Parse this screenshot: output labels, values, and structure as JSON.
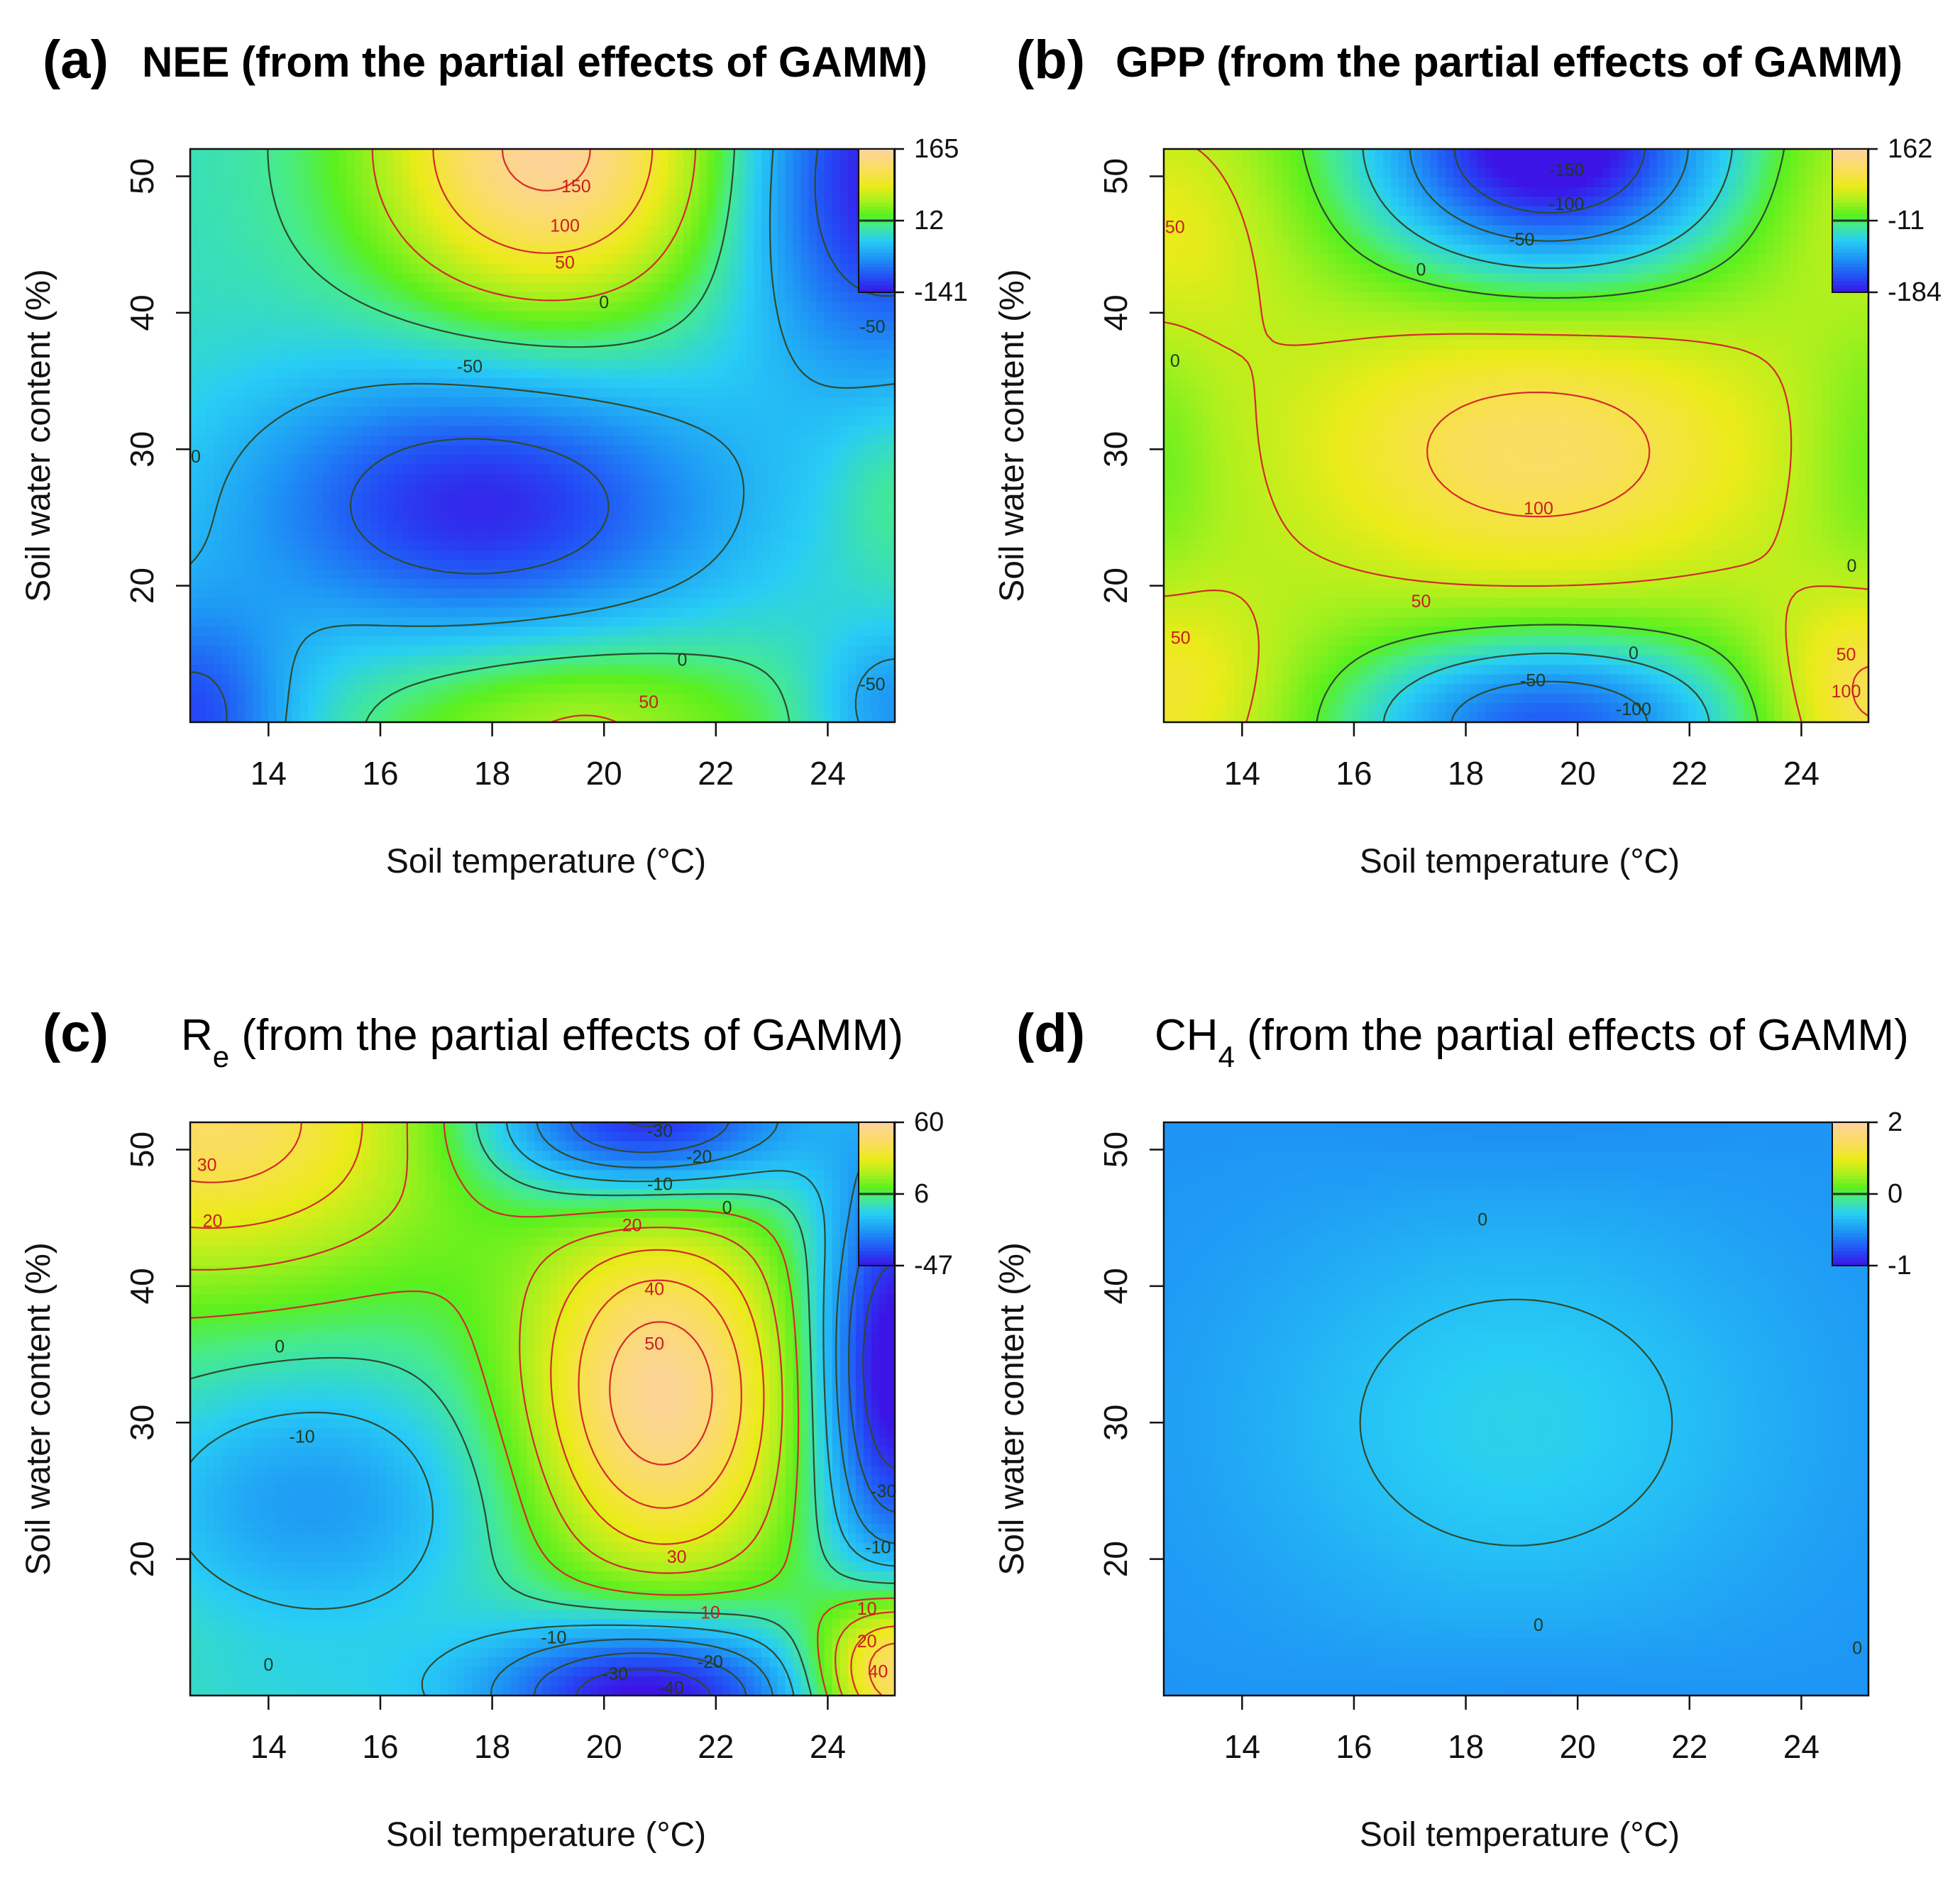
{
  "figure": {
    "common_xlabel": "Soil temperature (°C)",
    "common_ylabel": "Soil water content (%)"
  },
  "chart_data": [
    {
      "type": "heatmap",
      "letter": "(a)",
      "title": "NEE (from the partial effects of GAMM)",
      "title_bold": true,
      "title_main": "NEE",
      "title_sub": "",
      "title_rest": " (from the partial effects of GAMM)",
      "xlabel": "Soil temperature (°C)",
      "ylabel": "Soil water content (%)",
      "xlim": [
        12.6,
        25.2
      ],
      "ylim": [
        10,
        52
      ],
      "xticks": [
        14,
        16,
        18,
        20,
        22,
        24
      ],
      "yticks": [
        20,
        30,
        40,
        50
      ],
      "legend": {
        "max": 165,
        "mid": 12,
        "min": -141
      },
      "field": {
        "base": -13,
        "bumps": [
          {
            "x": 19.0,
            "y": 52,
            "sx": 2.2,
            "sy": 8.5,
            "a": 175
          },
          {
            "x": 17.8,
            "y": 26,
            "sx": 3.0,
            "sy": 7.0,
            "a": -118
          },
          {
            "x": 25.0,
            "y": 50,
            "sx": 1.8,
            "sy": 10,
            "a": -130
          },
          {
            "x": 12.6,
            "y": 10,
            "sx": 1.3,
            "sy": 6.0,
            "a": -100
          },
          {
            "x": 19.5,
            "y": 10,
            "sx": 2.6,
            "sy": 4.5,
            "a": 72
          },
          {
            "x": 25.2,
            "y": 11,
            "sx": 1.0,
            "sy": 4.0,
            "a": -60
          },
          {
            "x": 25.2,
            "y": 27,
            "sx": 0.8,
            "sy": 4.5,
            "a": 26
          }
        ]
      },
      "contours": [
        -100,
        -50,
        0,
        50,
        100,
        150
      ],
      "contour_labels": [
        {
          "text": "150",
          "x": 19.5,
          "y": 49.3
        },
        {
          "text": "100",
          "x": 19.3,
          "y": 46.4
        },
        {
          "text": "50",
          "x": 19.3,
          "y": 43.7
        },
        {
          "text": "0",
          "x": 20.0,
          "y": 40.8
        },
        {
          "text": "-50",
          "x": 17.6,
          "y": 36.1
        },
        {
          "text": "-50",
          "x": 24.8,
          "y": 39.0
        },
        {
          "text": "0",
          "x": 12.7,
          "y": 29.5
        },
        {
          "text": "0",
          "x": 21.4,
          "y": 14.6
        },
        {
          "text": "50",
          "x": 20.8,
          "y": 11.5
        },
        {
          "text": "-50",
          "x": 24.8,
          "y": 12.8
        }
      ]
    },
    {
      "type": "heatmap",
      "letter": "(b)",
      "title": "GPP (from the partial effects of GAMM)",
      "title_bold": true,
      "title_main": "GPP",
      "title_sub": "",
      "title_rest": " (from the partial effects of GAMM)",
      "xlabel": "Soil temperature (°C)",
      "ylabel": "Soil water content (%)",
      "xlim": [
        12.6,
        25.2
      ],
      "ylim": [
        10,
        52
      ],
      "xticks": [
        14,
        16,
        18,
        20,
        22,
        24
      ],
      "yticks": [
        20,
        30,
        40,
        50
      ],
      "legend": {
        "max": 162,
        "mid": -11,
        "min": -184
      },
      "field": {
        "base": 18,
        "bumps": [
          {
            "x": 19.5,
            "y": 52,
            "sx": 2.2,
            "sy": 6.5,
            "a": -230
          },
          {
            "x": 19.5,
            "y": 10,
            "sx": 2.4,
            "sy": 4.5,
            "a": -160
          },
          {
            "x": 19.3,
            "y": 30,
            "sx": 3.2,
            "sy": 8.0,
            "a": 100
          },
          {
            "x": 12.6,
            "y": 46,
            "sx": 1.6,
            "sy": 7.0,
            "a": 55
          },
          {
            "x": 12.6,
            "y": 12,
            "sx": 1.6,
            "sy": 6.0,
            "a": 70
          },
          {
            "x": 25.2,
            "y": 12,
            "sx": 1.3,
            "sy": 5.5,
            "a": 95
          },
          {
            "x": 25.2,
            "y": 48,
            "sx": 1.4,
            "sy": 6.5,
            "a": 40
          },
          {
            "x": 12.6,
            "y": 30,
            "sx": 0.6,
            "sy": 7.0,
            "a": -20
          },
          {
            "x": 25.2,
            "y": 29,
            "sx": 0.8,
            "sy": 7.0,
            "a": -25
          }
        ]
      },
      "contours": [
        -150,
        -100,
        -50,
        0,
        50,
        100
      ],
      "contour_labels": [
        {
          "text": "-150",
          "x": 19.8,
          "y": 50.5
        },
        {
          "text": "-100",
          "x": 19.8,
          "y": 48.0
        },
        {
          "text": "-50",
          "x": 19.0,
          "y": 45.4
        },
        {
          "text": "0",
          "x": 17.2,
          "y": 43.2
        },
        {
          "text": "50",
          "x": 12.8,
          "y": 46.3
        },
        {
          "text": "0",
          "x": 12.8,
          "y": 36.5
        },
        {
          "text": "100",
          "x": 19.3,
          "y": 25.7
        },
        {
          "text": "50",
          "x": 17.2,
          "y": 18.9
        },
        {
          "text": "50",
          "x": 12.9,
          "y": 16.2
        },
        {
          "text": "0",
          "x": 21.0,
          "y": 15.1
        },
        {
          "text": "-50",
          "x": 19.2,
          "y": 13.1
        },
        {
          "text": "-100",
          "x": 21.0,
          "y": 11.0
        },
        {
          "text": "0",
          "x": 24.9,
          "y": 21.5
        },
        {
          "text": "50",
          "x": 24.8,
          "y": 15.0
        },
        {
          "text": "100",
          "x": 24.8,
          "y": 12.3
        }
      ]
    },
    {
      "type": "heatmap",
      "letter": "(c)",
      "title": "Re (from the partial effects of GAMM)",
      "title_bold": false,
      "title_main": "R",
      "title_sub": "e",
      "title_rest": " (from the partial effects of GAMM)",
      "xlabel": "Soil temperature (°C)",
      "ylabel": "Soil water content (%)",
      "xlim": [
        12.6,
        25.2
      ],
      "ylim": [
        10,
        52
      ],
      "xticks": [
        14,
        16,
        18,
        20,
        22,
        24
      ],
      "yticks": [
        20,
        30,
        40,
        50
      ],
      "legend": {
        "max": 60,
        "mid": 6,
        "min": -47
      },
      "field": {
        "base": 4,
        "bumps": [
          {
            "x": 21.0,
            "y": 32,
            "sx": 1.7,
            "sy": 9.5,
            "a": 54
          },
          {
            "x": 13.0,
            "y": 52,
            "sx": 3.0,
            "sy": 8.0,
            "a": 42
          },
          {
            "x": 20.7,
            "y": 52,
            "sx": 2.0,
            "sy": 4.0,
            "a": -52
          },
          {
            "x": 20.8,
            "y": 10,
            "sx": 2.0,
            "sy": 4.0,
            "a": -55
          },
          {
            "x": 14.8,
            "y": 24,
            "sx": 2.4,
            "sy": 7.0,
            "a": -24
          },
          {
            "x": 25.2,
            "y": 34,
            "sx": 1.0,
            "sy": 11.0,
            "a": -58
          },
          {
            "x": 25.2,
            "y": 12,
            "sx": 1.0,
            "sy": 4.0,
            "a": 55
          },
          {
            "x": 14.5,
            "y": 10,
            "sx": 3.0,
            "sy": 3.0,
            "a": -6
          }
        ]
      },
      "contours": [
        -40,
        -30,
        -20,
        -10,
        0,
        10,
        20,
        30,
        40,
        50
      ],
      "contour_labels": [
        {
          "text": "30",
          "x": 12.9,
          "y": 48.9
        },
        {
          "text": "20",
          "x": 13.0,
          "y": 44.8
        },
        {
          "text": "-30",
          "x": 21.0,
          "y": 51.4
        },
        {
          "text": "-20",
          "x": 21.7,
          "y": 49.5
        },
        {
          "text": "-10",
          "x": 21.0,
          "y": 47.5
        },
        {
          "text": "0",
          "x": 22.2,
          "y": 45.8
        },
        {
          "text": "20",
          "x": 20.5,
          "y": 44.5
        },
        {
          "text": "40",
          "x": 20.9,
          "y": 39.8
        },
        {
          "text": "50",
          "x": 20.9,
          "y": 35.8
        },
        {
          "text": "0",
          "x": 14.2,
          "y": 35.6
        },
        {
          "text": "-10",
          "x": 14.6,
          "y": 29.0
        },
        {
          "text": "30",
          "x": 21.3,
          "y": 20.2
        },
        {
          "text": "10",
          "x": 21.9,
          "y": 16.1
        },
        {
          "text": "-10",
          "x": 19.1,
          "y": 14.3
        },
        {
          "text": "0",
          "x": 14.0,
          "y": 12.3
        },
        {
          "text": "-30",
          "x": 20.2,
          "y": 11.6
        },
        {
          "text": "-20",
          "x": 21.9,
          "y": 12.5
        },
        {
          "text": "-40",
          "x": 21.2,
          "y": 10.6
        },
        {
          "text": "10",
          "x": 24.7,
          "y": 16.4
        },
        {
          "text": "-10",
          "x": 24.9,
          "y": 20.9
        },
        {
          "text": "-30",
          "x": 25.0,
          "y": 25.0
        },
        {
          "text": "20",
          "x": 24.7,
          "y": 14.0
        },
        {
          "text": "40",
          "x": 24.9,
          "y": 11.8
        }
      ]
    },
    {
      "type": "heatmap",
      "letter": "(d)",
      "title": "CH4 (from the partial effects of GAMM)",
      "title_bold": false,
      "title_main": "CH",
      "title_sub": "4",
      "title_rest": " (from the partial effects of GAMM)",
      "xlabel": "Soil temperature (°C)",
      "ylabel": "Soil water content (%)",
      "xlim": [
        12.6,
        25.2
      ],
      "ylim": [
        10,
        52
      ],
      "xticks": [
        14,
        16,
        18,
        20,
        22,
        24
      ],
      "yticks": [
        20,
        30,
        40,
        50
      ],
      "legend": {
        "max": 2,
        "mid": 0,
        "min": -1
      },
      "field": {
        "base": -0.3,
        "bumps": [
          {
            "x": 18.9,
            "y": 30,
            "sx": 3.4,
            "sy": 11.0,
            "a": 0.42
          },
          {
            "x": 19.0,
            "y": 52,
            "sx": 2.5,
            "sy": 3.5,
            "a": -0.08
          },
          {
            "x": 19.0,
            "y": 10,
            "sx": 2.5,
            "sy": 3.0,
            "a": -0.08
          }
        ]
      },
      "contours": [
        0
      ],
      "contour_labels": [
        {
          "text": "0",
          "x": 18.3,
          "y": 44.9
        },
        {
          "text": "0",
          "x": 19.3,
          "y": 15.2
        },
        {
          "text": "0",
          "x": 25.0,
          "y": 13.5
        }
      ]
    }
  ]
}
